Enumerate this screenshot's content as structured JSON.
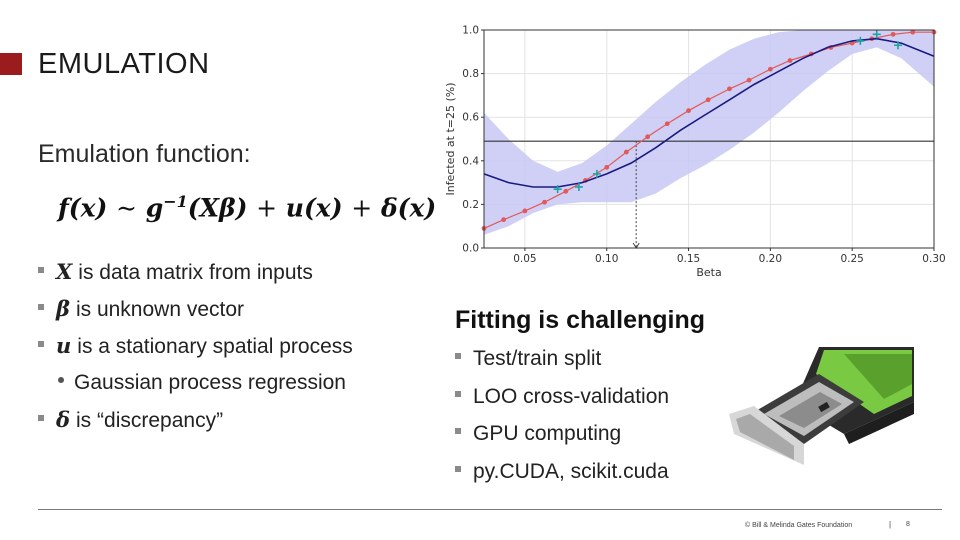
{
  "slide": {
    "title": "EMULATION",
    "subtitle": "Emulation function:",
    "formula": {
      "lhs": "f(x)",
      "sim": "∼",
      "g": "g",
      "exp": "−1",
      "arg": "(Xβ)",
      "plus1": "+",
      "u": "u(x)",
      "plus2": "+",
      "delta": "δ(x)"
    },
    "bullets": [
      {
        "symbol": "X",
        "text": "is data matrix from inputs"
      },
      {
        "symbol": "β",
        "text": "is unknown vector"
      },
      {
        "symbol": "u",
        "text": "is a stationary spatial process"
      },
      {
        "symbol": "",
        "text": "Gaussian process regression"
      },
      {
        "symbol": "δ",
        "text": "is “discrepancy”"
      }
    ],
    "fitting": {
      "title": "Fitting is challenging",
      "items": [
        "Test/train split",
        "LOO cross-validation",
        "GPU computing",
        "py.CUDA, scikit.cuda"
      ]
    },
    "gpu_image": {
      "description_icon": "gpu-card-image",
      "accent_color": "#7ac943"
    },
    "footer": {
      "credit": "© Bill & Melinda Gates Foundation",
      "separator": "|",
      "page": "8"
    }
  },
  "chart_data": {
    "type": "line",
    "title": "",
    "xlabel": "Beta",
    "ylabel": "Infected at t=25 (%)",
    "xlim": [
      0.025,
      0.3
    ],
    "ylim": [
      0.0,
      1.0
    ],
    "x_ticks": [
      "0.05",
      "0.10",
      "0.15",
      "0.20",
      "0.25",
      "0.30"
    ],
    "y_ticks": [
      "0.0",
      "0.2",
      "0.4",
      "0.6",
      "0.8",
      "1.0"
    ],
    "grid": true,
    "series": [
      {
        "role": "truth-red-dots",
        "color": "#e05a5a",
        "x": [
          0.025,
          0.037,
          0.05,
          0.062,
          0.075,
          0.087,
          0.1,
          0.112,
          0.125,
          0.137,
          0.15,
          0.162,
          0.175,
          0.187,
          0.2,
          0.212,
          0.225,
          0.237,
          0.25,
          0.262,
          0.275,
          0.287,
          0.3
        ],
        "y": [
          0.09,
          0.13,
          0.17,
          0.21,
          0.26,
          0.31,
          0.37,
          0.44,
          0.51,
          0.57,
          0.63,
          0.68,
          0.73,
          0.77,
          0.82,
          0.86,
          0.89,
          0.92,
          0.94,
          0.96,
          0.98,
          0.99,
          0.99
        ]
      },
      {
        "role": "gp-mean",
        "color": "#1a1a80",
        "x": [
          0.025,
          0.04,
          0.055,
          0.07,
          0.085,
          0.1,
          0.115,
          0.13,
          0.145,
          0.16,
          0.175,
          0.19,
          0.205,
          0.22,
          0.235,
          0.25,
          0.265,
          0.28,
          0.3
        ],
        "y": [
          0.34,
          0.3,
          0.28,
          0.28,
          0.3,
          0.34,
          0.39,
          0.46,
          0.54,
          0.61,
          0.68,
          0.75,
          0.81,
          0.87,
          0.92,
          0.95,
          0.96,
          0.94,
          0.88
        ]
      }
    ],
    "band": {
      "color": "#c8c8f5",
      "x": [
        0.025,
        0.04,
        0.055,
        0.07,
        0.085,
        0.1,
        0.115,
        0.13,
        0.145,
        0.16,
        0.175,
        0.19,
        0.205,
        0.22,
        0.235,
        0.25,
        0.265,
        0.28,
        0.3
      ],
      "upper": [
        0.62,
        0.5,
        0.4,
        0.35,
        0.39,
        0.47,
        0.57,
        0.67,
        0.76,
        0.84,
        0.91,
        0.96,
        0.99,
        1.0,
        1.0,
        1.0,
        1.0,
        1.0,
        1.0
      ],
      "lower": [
        0.06,
        0.1,
        0.16,
        0.2,
        0.21,
        0.21,
        0.21,
        0.25,
        0.32,
        0.38,
        0.45,
        0.53,
        0.62,
        0.72,
        0.81,
        0.89,
        0.92,
        0.87,
        0.74
      ]
    },
    "train_points": {
      "color": "#1aa3a3",
      "x": [
        0.07,
        0.083,
        0.094,
        0.255,
        0.265,
        0.278
      ],
      "y": [
        0.27,
        0.28,
        0.34,
        0.95,
        0.98,
        0.93
      ]
    },
    "hline": {
      "y": 0.49,
      "color": "#333333"
    },
    "vline_dotted": {
      "x": 0.118,
      "y_top": 0.49
    }
  }
}
